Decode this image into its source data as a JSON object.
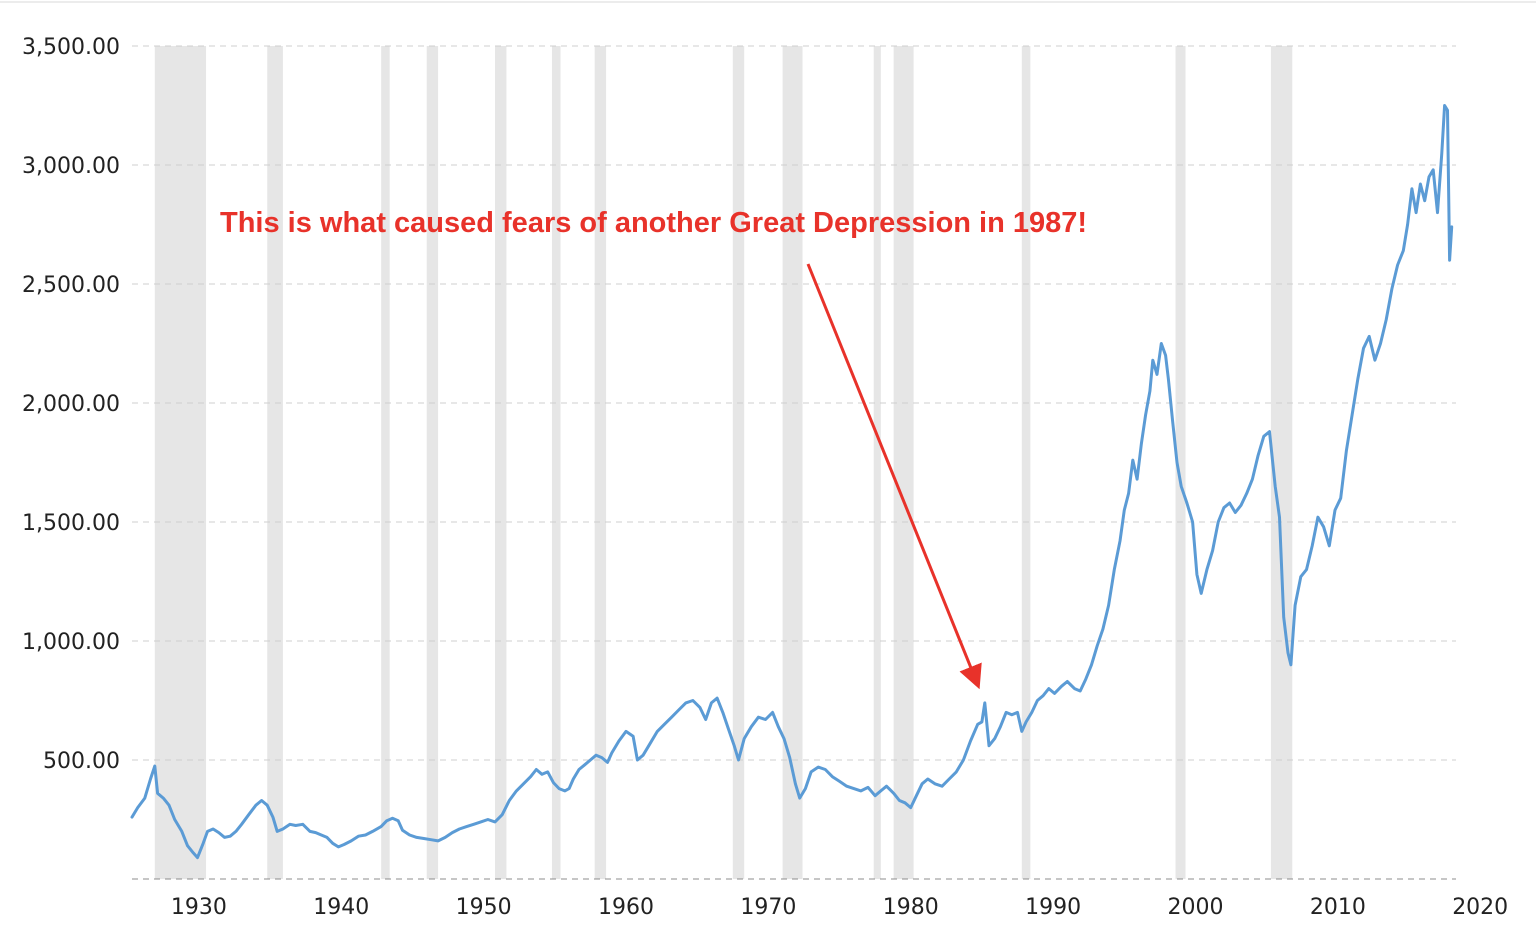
{
  "chart_data": {
    "type": "line",
    "title": "",
    "xlabel": "",
    "ylabel": "",
    "xlim": [
      1925.3,
      2018.3
    ],
    "ylim": [
      0,
      3500
    ],
    "grid": true,
    "y_ticks": [
      500,
      1000,
      1500,
      2000,
      2500,
      3000,
      3500
    ],
    "y_tick_labels": [
      "500.00",
      "1,000.00",
      "1,500.00",
      "2,000.00",
      "2,500.00",
      "3,000.00",
      "3,500.00"
    ],
    "x_ticks": [
      1930,
      1940,
      1950,
      1960,
      1970,
      1980,
      1990,
      2000,
      2010,
      2020
    ],
    "x_tick_labels": [
      "1930",
      "1940",
      "1950",
      "1960",
      "1970",
      "1980",
      "1990",
      "2000",
      "2010",
      "2020"
    ],
    "colors": {
      "line": "#5b9bd5",
      "recession": "#e6e6e6",
      "grid": "#cfcfcf",
      "annotation": "#e8322a"
    },
    "recessions": [
      [
        1926.9,
        1930.5
      ],
      [
        1934.8,
        1935.9
      ],
      [
        1942.8,
        1943.4
      ],
      [
        1946.0,
        1946.8
      ],
      [
        1950.8,
        1951.6
      ],
      [
        1954.8,
        1955.4
      ],
      [
        1957.8,
        1958.6
      ],
      [
        1967.5,
        1968.3
      ],
      [
        1971.0,
        1972.4
      ],
      [
        1977.4,
        1977.9
      ],
      [
        1978.8,
        1980.2
      ],
      [
        1987.8,
        1988.4
      ],
      [
        1998.6,
        1999.3
      ],
      [
        2005.3,
        2006.8
      ]
    ],
    "series": [
      {
        "values": [
          [
            1925.3,
            260
          ],
          [
            1925.7,
            300
          ],
          [
            1926.2,
            340
          ],
          [
            1926.6,
            420
          ],
          [
            1926.9,
            475
          ],
          [
            1927.1,
            360
          ],
          [
            1927.5,
            340
          ],
          [
            1927.9,
            310
          ],
          [
            1928.3,
            250
          ],
          [
            1928.8,
            200
          ],
          [
            1929.2,
            140
          ],
          [
            1929.6,
            110
          ],
          [
            1929.9,
            90
          ],
          [
            1930.3,
            150
          ],
          [
            1930.6,
            200
          ],
          [
            1931.0,
            210
          ],
          [
            1931.4,
            195
          ],
          [
            1931.8,
            175
          ],
          [
            1932.2,
            180
          ],
          [
            1932.6,
            200
          ],
          [
            1933.0,
            230
          ],
          [
            1933.5,
            270
          ],
          [
            1934.0,
            310
          ],
          [
            1934.4,
            330
          ],
          [
            1934.8,
            310
          ],
          [
            1935.2,
            260
          ],
          [
            1935.5,
            200
          ],
          [
            1935.9,
            210
          ],
          [
            1936.4,
            230
          ],
          [
            1936.8,
            225
          ],
          [
            1937.3,
            230
          ],
          [
            1937.8,
            200
          ],
          [
            1938.2,
            195
          ],
          [
            1938.6,
            185
          ],
          [
            1939.0,
            175
          ],
          [
            1939.4,
            150
          ],
          [
            1939.8,
            135
          ],
          [
            1940.2,
            145
          ],
          [
            1940.7,
            160
          ],
          [
            1941.2,
            180
          ],
          [
            1941.7,
            185
          ],
          [
            1942.2,
            200
          ],
          [
            1942.8,
            220
          ],
          [
            1943.2,
            245
          ],
          [
            1943.6,
            255
          ],
          [
            1944.0,
            245
          ],
          [
            1944.3,
            205
          ],
          [
            1944.8,
            185
          ],
          [
            1945.3,
            175
          ],
          [
            1945.8,
            170
          ],
          [
            1946.3,
            165
          ],
          [
            1946.8,
            160
          ],
          [
            1947.3,
            175
          ],
          [
            1947.8,
            195
          ],
          [
            1948.3,
            210
          ],
          [
            1948.8,
            220
          ],
          [
            1949.3,
            230
          ],
          [
            1949.8,
            240
          ],
          [
            1950.3,
            250
          ],
          [
            1950.8,
            240
          ],
          [
            1951.3,
            270
          ],
          [
            1951.8,
            330
          ],
          [
            1952.3,
            370
          ],
          [
            1952.8,
            400
          ],
          [
            1953.3,
            430
          ],
          [
            1953.7,
            460
          ],
          [
            1954.1,
            440
          ],
          [
            1954.5,
            450
          ],
          [
            1954.9,
            405
          ],
          [
            1955.3,
            380
          ],
          [
            1955.7,
            370
          ],
          [
            1956.0,
            380
          ],
          [
            1956.3,
            420
          ],
          [
            1956.7,
            460
          ],
          [
            1957.1,
            480
          ],
          [
            1957.5,
            500
          ],
          [
            1957.9,
            520
          ],
          [
            1958.3,
            510
          ],
          [
            1958.7,
            490
          ],
          [
            1959.0,
            530
          ],
          [
            1959.5,
            580
          ],
          [
            1960.0,
            620
          ],
          [
            1960.5,
            600
          ],
          [
            1960.8,
            500
          ],
          [
            1961.2,
            520
          ],
          [
            1961.7,
            570
          ],
          [
            1962.2,
            620
          ],
          [
            1962.7,
            650
          ],
          [
            1963.2,
            680
          ],
          [
            1963.7,
            710
          ],
          [
            1964.2,
            740
          ],
          [
            1964.7,
            750
          ],
          [
            1965.2,
            720
          ],
          [
            1965.6,
            670
          ],
          [
            1966.0,
            740
          ],
          [
            1966.4,
            760
          ],
          [
            1966.8,
            700
          ],
          [
            1967.2,
            630
          ],
          [
            1967.6,
            560
          ],
          [
            1967.9,
            500
          ],
          [
            1968.3,
            590
          ],
          [
            1968.8,
            640
          ],
          [
            1969.3,
            680
          ],
          [
            1969.8,
            670
          ],
          [
            1970.3,
            700
          ],
          [
            1970.7,
            640
          ],
          [
            1971.1,
            590
          ],
          [
            1971.5,
            510
          ],
          [
            1971.9,
            400
          ],
          [
            1972.2,
            340
          ],
          [
            1972.6,
            380
          ],
          [
            1973.0,
            450
          ],
          [
            1973.5,
            470
          ],
          [
            1974.0,
            460
          ],
          [
            1974.5,
            430
          ],
          [
            1975.0,
            410
          ],
          [
            1975.5,
            390
          ],
          [
            1976.0,
            380
          ],
          [
            1976.5,
            370
          ],
          [
            1977.0,
            385
          ],
          [
            1977.5,
            350
          ],
          [
            1977.9,
            370
          ],
          [
            1978.3,
            390
          ],
          [
            1978.8,
            360
          ],
          [
            1979.2,
            330
          ],
          [
            1979.6,
            320
          ],
          [
            1980.0,
            300
          ],
          [
            1980.4,
            350
          ],
          [
            1980.8,
            400
          ],
          [
            1981.2,
            420
          ],
          [
            1981.7,
            400
          ],
          [
            1982.2,
            390
          ],
          [
            1982.7,
            420
          ],
          [
            1983.2,
            450
          ],
          [
            1983.7,
            500
          ],
          [
            1984.2,
            580
          ],
          [
            1984.7,
            650
          ],
          [
            1985.0,
            660
          ],
          [
            1985.2,
            740
          ],
          [
            1985.5,
            560
          ],
          [
            1985.9,
            590
          ],
          [
            1986.3,
            640
          ],
          [
            1986.7,
            700
          ],
          [
            1987.1,
            690
          ],
          [
            1987.5,
            700
          ],
          [
            1987.8,
            620
          ],
          [
            1988.1,
            660
          ],
          [
            1988.5,
            700
          ],
          [
            1988.9,
            750
          ],
          [
            1989.3,
            770
          ],
          [
            1989.7,
            800
          ],
          [
            1990.1,
            780
          ],
          [
            1990.6,
            810
          ],
          [
            1991.0,
            830
          ],
          [
            1991.5,
            800
          ],
          [
            1991.9,
            790
          ],
          [
            1992.3,
            840
          ],
          [
            1992.7,
            900
          ],
          [
            1993.1,
            980
          ],
          [
            1993.5,
            1050
          ],
          [
            1993.9,
            1150
          ],
          [
            1994.3,
            1300
          ],
          [
            1994.7,
            1420
          ],
          [
            1995.0,
            1550
          ],
          [
            1995.3,
            1620
          ],
          [
            1995.6,
            1760
          ],
          [
            1995.9,
            1680
          ],
          [
            1996.2,
            1830
          ],
          [
            1996.5,
            1950
          ],
          [
            1996.8,
            2050
          ],
          [
            1997.0,
            2180
          ],
          [
            1997.3,
            2120
          ],
          [
            1997.6,
            2250
          ],
          [
            1997.9,
            2200
          ],
          [
            1998.1,
            2100
          ],
          [
            1998.4,
            1920
          ],
          [
            1998.7,
            1750
          ],
          [
            1999.0,
            1650
          ],
          [
            1999.4,
            1580
          ],
          [
            1999.8,
            1500
          ],
          [
            2000.1,
            1280
          ],
          [
            2000.4,
            1200
          ],
          [
            2000.8,
            1300
          ],
          [
            2001.2,
            1380
          ],
          [
            2001.6,
            1500
          ],
          [
            2002.0,
            1560
          ],
          [
            2002.4,
            1580
          ],
          [
            2002.8,
            1540
          ],
          [
            2003.2,
            1570
          ],
          [
            2003.6,
            1620
          ],
          [
            2004.0,
            1680
          ],
          [
            2004.4,
            1780
          ],
          [
            2004.8,
            1860
          ],
          [
            2005.2,
            1880
          ],
          [
            2005.6,
            1650
          ],
          [
            2005.9,
            1520
          ],
          [
            2006.2,
            1100
          ],
          [
            2006.5,
            950
          ],
          [
            2006.7,
            900
          ],
          [
            2007.0,
            1150
          ],
          [
            2007.4,
            1270
          ],
          [
            2007.8,
            1300
          ],
          [
            2008.2,
            1400
          ],
          [
            2008.6,
            1520
          ],
          [
            2009.0,
            1480
          ],
          [
            2009.4,
            1400
          ],
          [
            2009.8,
            1550
          ],
          [
            2010.2,
            1600
          ],
          [
            2010.6,
            1800
          ],
          [
            2011.0,
            1950
          ],
          [
            2011.4,
            2100
          ],
          [
            2011.8,
            2230
          ],
          [
            2012.2,
            2280
          ],
          [
            2012.6,
            2180
          ],
          [
            2013.0,
            2250
          ],
          [
            2013.4,
            2350
          ],
          [
            2013.8,
            2480
          ],
          [
            2014.2,
            2580
          ],
          [
            2014.6,
            2640
          ],
          [
            2014.9,
            2750
          ],
          [
            2015.2,
            2900
          ],
          [
            2015.5,
            2800
          ],
          [
            2015.8,
            2920
          ],
          [
            2016.1,
            2850
          ],
          [
            2016.4,
            2950
          ],
          [
            2016.7,
            2980
          ],
          [
            2017.0,
            2800
          ],
          [
            2017.3,
            3050
          ],
          [
            2017.5,
            3250
          ],
          [
            2017.7,
            3230
          ],
          [
            2017.85,
            2600
          ],
          [
            2018.0,
            2740
          ]
        ]
      }
    ],
    "annotation": {
      "text": "This is what caused fears of another Great Depression in 1987!",
      "arrow_target": [
        1984.8,
        760
      ]
    }
  }
}
